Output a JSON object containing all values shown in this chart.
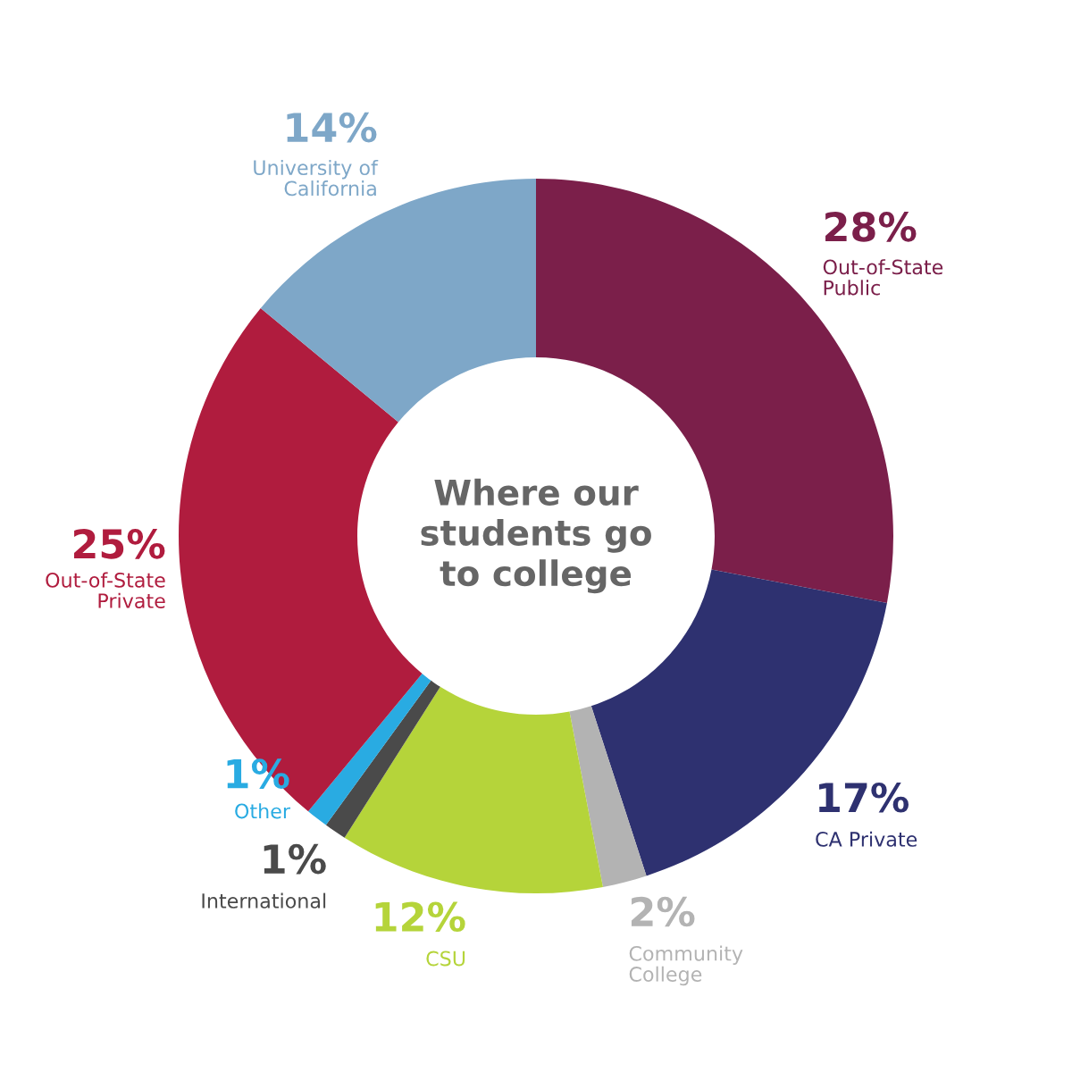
{
  "chart_data": {
    "type": "donut",
    "title": "Where our\nstudents go\nto college",
    "categories": [
      "Out-of-State\nPublic",
      "CA Private",
      "Community\nCollege",
      "CSU",
      "International",
      "Other",
      "Out-of-State\nPrivate",
      "University of\nCalifornia"
    ],
    "values": [
      28,
      17,
      2,
      12,
      1,
      1,
      25,
      14
    ],
    "value_labels": [
      "28%",
      "17%",
      "2%",
      "12%",
      "1%",
      "1%",
      "25%",
      "14%"
    ],
    "colors": [
      "#7b1f4a",
      "#2e3170",
      "#b3b3b3",
      "#b5d43a",
      "#4a4a4a",
      "#29abe2",
      "#b01c3e",
      "#7ea7c8"
    ],
    "legend": false
  }
}
